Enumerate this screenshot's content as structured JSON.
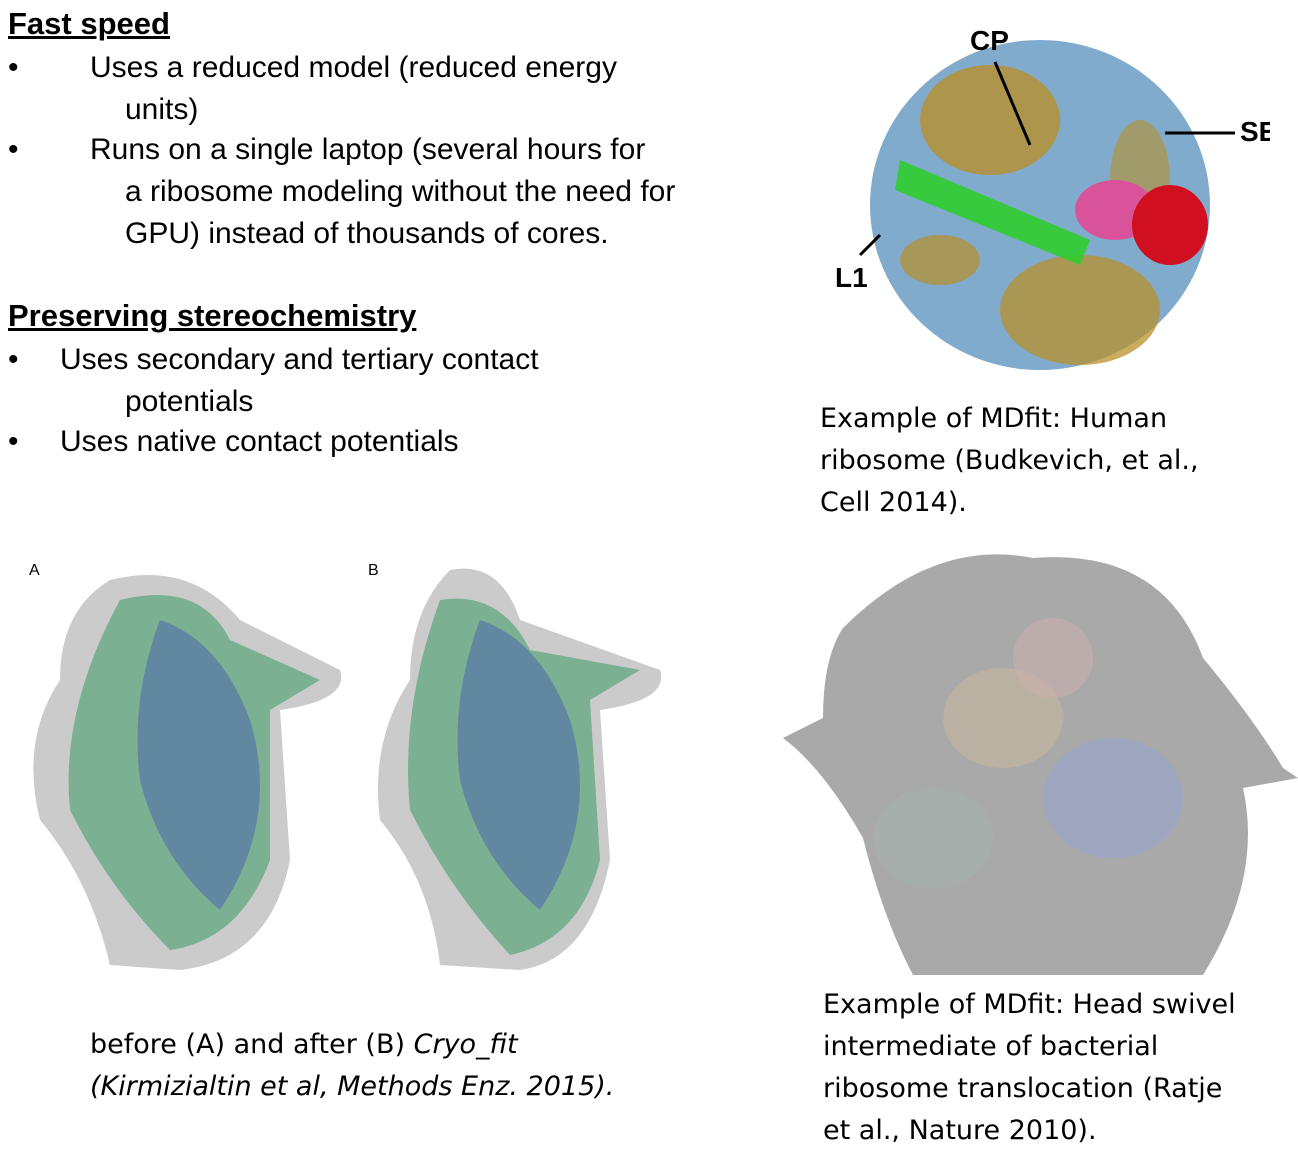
{
  "section1": {
    "heading": "Fast speed",
    "bullets": [
      {
        "marker": "•",
        "lines": [
          "Uses a reduced model (reduced energy",
          "units)"
        ]
      },
      {
        "marker": "•",
        "lines": [
          "Runs on a single laptop (several hours for",
          "a ribosome modeling without the need for",
          "GPU) instead of thousands of cores."
        ]
      }
    ]
  },
  "section2": {
    "heading": "Preserving stereochemistry",
    "bullets": [
      {
        "marker": "•",
        "lines": [
          "Uses secondary and tertiary contact",
          "potentials"
        ]
      },
      {
        "marker": "•",
        "lines": [
          "Uses native contact potentials"
        ]
      }
    ]
  },
  "figure_human": {
    "labels": {
      "cp": "CP",
      "se": "SE",
      "l1": "L1"
    },
    "caption": [
      "Example of MDfit: Human",
      "ribosome (Budkevich, et al.,",
      "Cell 2014)."
    ]
  },
  "figure_cryofit": {
    "panel_a": "A",
    "panel_b": "B",
    "caption_line1_prefix": "before (A) and after (B) ",
    "caption_line1_italic": "Cryo_fit",
    "caption_line2": "(Kirmizialtin et al, Methods Enz. 2015)."
  },
  "figure_bacterial": {
    "caption": [
      "Example of MDfit: Head swivel",
      "intermediate of bacterial",
      "ribosome translocation (Ratje",
      "et al., Nature 2010)."
    ]
  },
  "colors": {
    "rna_blue": "#5b8fb8",
    "protein_gold": "#b8902a",
    "trna_green": "#2fcc2f",
    "factor_pink": "#d9539a",
    "factor_red": "#d01020",
    "model_green": "#3a9a66",
    "model_blue": "#4a5fb0",
    "density_gray": "#a8a8a8"
  }
}
